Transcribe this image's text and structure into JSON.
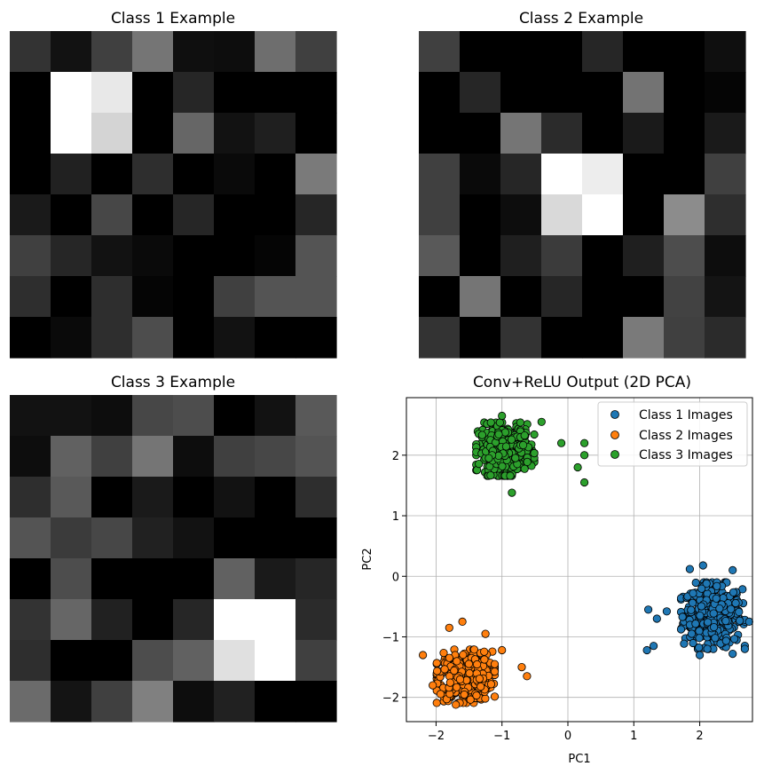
{
  "chart_data": [
    {
      "type": "heatmap",
      "title": "Class 1 Example",
      "colormap": "gray",
      "vmin": 0,
      "vmax": 1,
      "values": [
        [
          0.2,
          0.07,
          0.25,
          0.46,
          0.06,
          0.05,
          0.43,
          0.25
        ],
        [
          0.0,
          1.0,
          0.91,
          0.0,
          0.15,
          0.0,
          0.0,
          0.0
        ],
        [
          0.0,
          1.0,
          0.83,
          0.0,
          0.4,
          0.07,
          0.12,
          0.0
        ],
        [
          0.0,
          0.13,
          0.0,
          0.18,
          0.0,
          0.04,
          0.0,
          0.48
        ],
        [
          0.1,
          0.0,
          0.28,
          0.0,
          0.15,
          0.0,
          0.0,
          0.15
        ],
        [
          0.25,
          0.15,
          0.07,
          0.04,
          0.0,
          0.0,
          0.02,
          0.33
        ],
        [
          0.18,
          0.0,
          0.18,
          0.02,
          0.0,
          0.25,
          0.33,
          0.33
        ],
        [
          0.0,
          0.04,
          0.18,
          0.3,
          0.0,
          0.07,
          0.0,
          0.0
        ]
      ]
    },
    {
      "type": "heatmap",
      "title": "Class 2 Example",
      "colormap": "gray",
      "vmin": 0,
      "vmax": 1,
      "values": [
        [
          0.25,
          0.0,
          0.0,
          0.0,
          0.15,
          0.0,
          0.0,
          0.06
        ],
        [
          0.0,
          0.15,
          0.0,
          0.0,
          0.0,
          0.45,
          0.0,
          0.02
        ],
        [
          0.0,
          0.0,
          0.46,
          0.17,
          0.0,
          0.1,
          0.0,
          0.1
        ],
        [
          0.25,
          0.04,
          0.15,
          1.0,
          0.93,
          0.0,
          0.0,
          0.25
        ],
        [
          0.25,
          0.0,
          0.05,
          0.85,
          1.0,
          0.0,
          0.55,
          0.18
        ],
        [
          0.35,
          0.0,
          0.12,
          0.23,
          0.0,
          0.12,
          0.3,
          0.05
        ],
        [
          0.0,
          0.46,
          0.0,
          0.15,
          0.0,
          0.0,
          0.26,
          0.08
        ],
        [
          0.2,
          0.0,
          0.2,
          0.0,
          0.0,
          0.48,
          0.25,
          0.17
        ]
      ]
    },
    {
      "type": "heatmap",
      "title": "Class 3 Example",
      "colormap": "gray",
      "vmin": 0,
      "vmax": 1,
      "values": [
        [
          0.07,
          0.07,
          0.05,
          0.28,
          0.3,
          0.0,
          0.07,
          0.35
        ],
        [
          0.05,
          0.38,
          0.25,
          0.46,
          0.05,
          0.25,
          0.28,
          0.33
        ],
        [
          0.18,
          0.35,
          0.0,
          0.1,
          0.0,
          0.07,
          0.0,
          0.18
        ],
        [
          0.33,
          0.23,
          0.28,
          0.13,
          0.07,
          0.0,
          0.0,
          0.0
        ],
        [
          0.0,
          0.3,
          0.0,
          0.0,
          0.0,
          0.38,
          0.1,
          0.15
        ],
        [
          0.2,
          0.4,
          0.13,
          0.0,
          0.15,
          1.0,
          1.0,
          0.17
        ],
        [
          0.18,
          0.0,
          0.0,
          0.3,
          0.38,
          0.88,
          1.0,
          0.25
        ],
        [
          0.42,
          0.08,
          0.25,
          0.5,
          0.05,
          0.13,
          0.0,
          0.0
        ]
      ]
    },
    {
      "type": "scatter",
      "title": "Conv+ReLU Output (2D PCA)",
      "xlabel": "PC1",
      "ylabel": "PC2",
      "xlim": [
        -2.45,
        2.8
      ],
      "ylim": [
        -2.4,
        2.95
      ],
      "xticks": [
        -2,
        -1,
        0,
        1,
        2
      ],
      "yticks": [
        -2,
        -1,
        0,
        1,
        2
      ],
      "xtick_labels": [
        "−2",
        "−1",
        "0",
        "1",
        "2"
      ],
      "ytick_labels": [
        "−2",
        "−1",
        "0",
        "1",
        "2"
      ],
      "grid": true,
      "legend_position": "top-right",
      "points_per_series": 420,
      "series": [
        {
          "name": "Class 1 Images",
          "color": "#1f77b4",
          "center": [
            2.2,
            -0.65
          ],
          "spread": [
            0.22,
            0.25
          ],
          "outliers": [
            [
              1.2,
              -1.22
            ],
            [
              1.3,
              -1.15
            ],
            [
              1.22,
              -0.55
            ],
            [
              1.35,
              -0.7
            ],
            [
              1.85,
              0.12
            ],
            [
              2.05,
              0.18
            ],
            [
              2.5,
              0.1
            ],
            [
              2.0,
              -1.3
            ],
            [
              2.5,
              -1.28
            ],
            [
              2.75,
              -0.75
            ],
            [
              1.5,
              -0.58
            ]
          ]
        },
        {
          "name": "Class 2 Images",
          "color": "#ff7f0e",
          "center": [
            -1.55,
            -1.65
          ],
          "spread": [
            0.2,
            0.2
          ],
          "outliers": [
            [
              -0.62,
              -1.65
            ],
            [
              -0.7,
              -1.5
            ],
            [
              -2.2,
              -1.3
            ],
            [
              -2.05,
              -1.8
            ],
            [
              -1.7,
              -2.12
            ],
            [
              -1.6,
              -0.75
            ],
            [
              -1.8,
              -0.85
            ],
            [
              -1.0,
              -1.22
            ],
            [
              -1.25,
              -0.95
            ]
          ]
        },
        {
          "name": "Class 3 Images",
          "color": "#2ca02c",
          "center": [
            -0.95,
            2.1
          ],
          "spread": [
            0.2,
            0.2
          ],
          "outliers": [
            [
              0.25,
              2.2
            ],
            [
              0.25,
              2.0
            ],
            [
              -0.1,
              2.2
            ],
            [
              0.15,
              1.8
            ],
            [
              0.25,
              1.55
            ],
            [
              -0.85,
              1.38
            ],
            [
              -1.15,
              2.0
            ],
            [
              -1.2,
              1.95
            ],
            [
              -0.4,
              2.55
            ],
            [
              -1.0,
              2.65
            ]
          ]
        }
      ]
    }
  ]
}
